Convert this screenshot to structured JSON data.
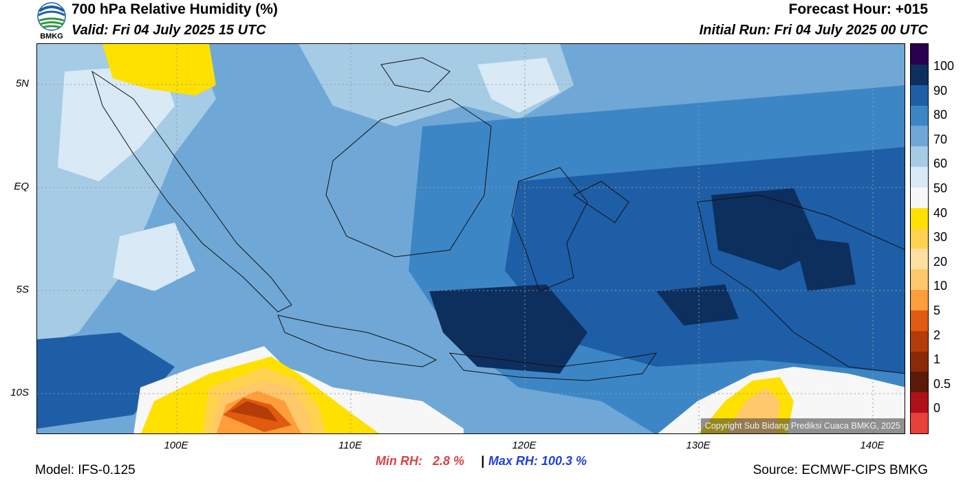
{
  "header": {
    "logo_text": "BMKG",
    "title": "700 hPa Relative Humidity (%)",
    "valid": "Valid: Fri 04 July 2025 15 UTC",
    "forecast_hour": "Forecast Hour: +015",
    "initial_run": "Initial Run: Fri 04 July 2025 00 UTC"
  },
  "map": {
    "lat_ticks": [
      "5N",
      "EQ",
      "5S",
      "10S"
    ],
    "lon_ticks": [
      "100E",
      "110E",
      "120E",
      "130E",
      "140E"
    ],
    "copyright": "Copyright Sub Bidang Prediksi Cuaca BMKG, 2025",
    "ocean_color": "#6fa8d6"
  },
  "colorbar": {
    "labels": [
      "100",
      "90",
      "80",
      "70",
      "60",
      "50",
      "40",
      "30",
      "20",
      "10",
      "5",
      "2",
      "1",
      "0.5",
      "0"
    ],
    "colors": [
      "#2a0050",
      "#0d2f5e",
      "#1e5ea6",
      "#3d86c6",
      "#6fa8d6",
      "#a6cbe5",
      "#d9e9f5",
      "#f7f7f7",
      "#ffe100",
      "#ffd34f",
      "#ffe0a0",
      "#ffc86a",
      "#ff9e3a",
      "#e05a10",
      "#b43c08",
      "#8a2a06",
      "#5c1a08",
      "#b0101a",
      "#e8403a"
    ]
  },
  "stats": {
    "min_rh": "Min RH:   2.8 %",
    "separator": "|",
    "max_rh": "Max RH: 100.3 %"
  },
  "footer": {
    "model": "Model: IFS-0.125",
    "source": "Source: ECMWF-CIPS BMKG"
  }
}
